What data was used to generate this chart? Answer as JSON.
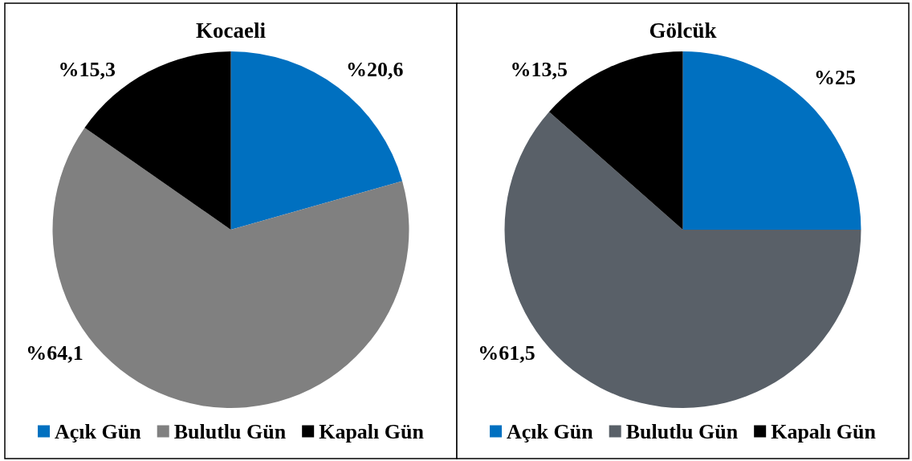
{
  "chart_data": [
    {
      "type": "pie",
      "title": "Kocaeli",
      "categories": [
        "Açık Gün",
        "Bulutlu Gün",
        "Kapalı Gün"
      ],
      "values": [
        20.6,
        64.1,
        15.3
      ],
      "colors": [
        "#0070c0",
        "#808080",
        "#000000"
      ],
      "value_labels": [
        "%20,6",
        "%64,1",
        "%15,3"
      ],
      "legend": "bottom"
    },
    {
      "type": "pie",
      "title": "Gölcük",
      "categories": [
        "Açık Gün",
        "Bulutlu Gün",
        "Kapalı Gün"
      ],
      "values": [
        25,
        61.5,
        13.5
      ],
      "colors": [
        "#0070c0",
        "#596068",
        "#000000"
      ],
      "value_labels": [
        "%25",
        "%61,5",
        "%13,5"
      ],
      "legend": "bottom"
    }
  ]
}
